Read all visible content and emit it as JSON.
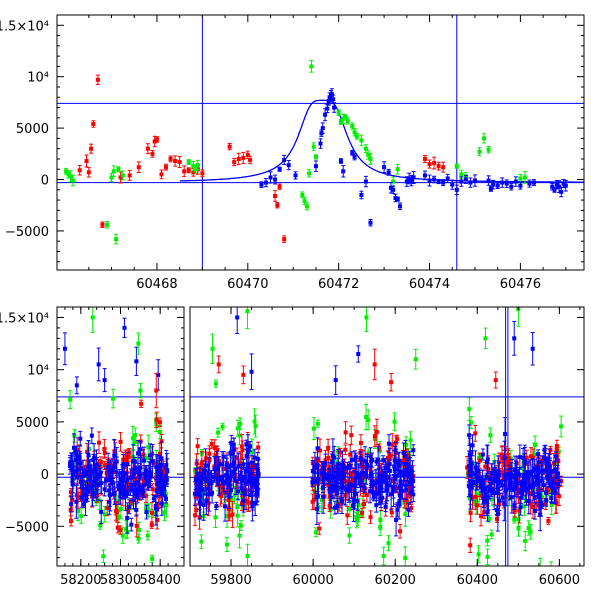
{
  "colors": {
    "red": "#ff0000",
    "green": "#00ee00",
    "blue": "#0000ff",
    "axis": "#000000",
    "ref_line": "#0000ff",
    "model_curve": "#0000ff"
  },
  "chart_data": [
    {
      "type": "scatter",
      "panel": "top",
      "title": "",
      "xlabel": "",
      "ylabel": "",
      "xlim": [
        60465.8,
        60477.4
      ],
      "ylim": [
        -8800,
        16000
      ],
      "x_ticks": [
        60468,
        60470,
        60472,
        60474,
        60476
      ],
      "x_tick_labels": [
        "60468",
        "60470",
        "60472",
        "60474",
        "60476"
      ],
      "y_ticks": [
        -5000,
        0,
        5000,
        10000,
        15000
      ],
      "y_tick_labels": [
        "−5000",
        "0",
        "5000",
        "10⁴",
        "1.5×10⁴"
      ],
      "horizontal_lines": [
        7400,
        -300
      ],
      "vertical_lines": [
        60469.0,
        60474.6
      ],
      "model_curve": {
        "baseline": -300,
        "peak": 7700,
        "t0": 60471.65,
        "width": 0.45,
        "x_range": [
          60468.5,
          60477.4
        ]
      },
      "series": [
        {
          "color": "red",
          "points": [
            [
              60466.7,
              9700
            ],
            [
              60466.6,
              5400
            ],
            [
              60466.55,
              3000
            ],
            [
              60466.45,
              1800
            ],
            [
              60466.3,
              900
            ],
            [
              60466.5,
              700
            ],
            [
              60466.8,
              -4400
            ],
            [
              60467.2,
              200
            ],
            [
              60467.4,
              400
            ],
            [
              60467.6,
              1200
            ],
            [
              60467.8,
              3000
            ],
            [
              60467.9,
              2500
            ],
            [
              60467.95,
              3700
            ],
            [
              60468.0,
              3900
            ],
            [
              60468.1,
              500
            ],
            [
              60468.2,
              1200
            ],
            [
              60468.3,
              2000
            ],
            [
              60468.4,
              1800
            ],
            [
              60468.5,
              1700
            ],
            [
              60468.6,
              800
            ],
            [
              60468.7,
              900
            ],
            [
              60468.8,
              700
            ],
            [
              60468.9,
              1000
            ],
            [
              60469.0,
              600
            ],
            [
              60469.6,
              3200
            ],
            [
              60469.7,
              1700
            ],
            [
              60469.8,
              2000
            ],
            [
              60469.9,
              2100
            ],
            [
              60470.0,
              2400
            ],
            [
              60470.05,
              1900
            ],
            [
              60470.6,
              -1600
            ],
            [
              60470.65,
              -2500
            ],
            [
              60470.7,
              -700
            ],
            [
              60470.8,
              -5800
            ],
            [
              60473.9,
              2000
            ],
            [
              60474.0,
              1500
            ],
            [
              60474.1,
              1600
            ],
            [
              60474.2,
              1300
            ],
            [
              60474.3,
              1200
            ]
          ]
        },
        {
          "color": "green",
          "points": [
            [
              60466.0,
              800
            ],
            [
              60466.05,
              500
            ],
            [
              60466.1,
              300
            ],
            [
              60466.15,
              -100
            ],
            [
              60466.9,
              -4400
            ],
            [
              60467.0,
              200
            ],
            [
              60467.05,
              800
            ],
            [
              60467.1,
              -5800
            ],
            [
              60467.15,
              1000
            ],
            [
              60467.25,
              400
            ],
            [
              60468.7,
              1700
            ],
            [
              60468.8,
              1300
            ],
            [
              60468.85,
              1000
            ],
            [
              60468.9,
              1400
            ],
            [
              60471.2,
              -1500
            ],
            [
              60471.25,
              -2100
            ],
            [
              60471.3,
              -2600
            ],
            [
              60471.35,
              600
            ],
            [
              60471.4,
              11000
            ],
            [
              60471.45,
              3200
            ],
            [
              60471.5,
              2200
            ],
            [
              60472.0,
              6500
            ],
            [
              60472.05,
              5600
            ],
            [
              60472.1,
              5900
            ],
            [
              60472.15,
              6100
            ],
            [
              60472.2,
              5700
            ],
            [
              60472.3,
              5200
            ],
            [
              60472.35,
              4600
            ],
            [
              60472.4,
              4200
            ],
            [
              60472.5,
              3800
            ],
            [
              60472.6,
              3000
            ],
            [
              60472.65,
              2400
            ],
            [
              60472.7,
              2000
            ],
            [
              60473.2,
              -200
            ],
            [
              60473.3,
              1000
            ],
            [
              60474.6,
              1300
            ],
            [
              60474.7,
              500
            ],
            [
              60474.8,
              300
            ],
            [
              60475.1,
              2700
            ],
            [
              60475.2,
              4000
            ],
            [
              60475.3,
              2900
            ],
            [
              60476.0,
              100
            ],
            [
              60476.1,
              200
            ]
          ]
        },
        {
          "color": "blue",
          "points": [
            [
              60470.3,
              -500
            ],
            [
              60470.4,
              -300
            ],
            [
              60470.5,
              200
            ],
            [
              60470.6,
              0
            ],
            [
              60470.7,
              1000
            ],
            [
              60470.8,
              1900
            ],
            [
              60470.9,
              1400
            ],
            [
              60471.05,
              400
            ],
            [
              60471.5,
              1300
            ],
            [
              60471.6,
              3500
            ],
            [
              60471.62,
              4500
            ],
            [
              60471.65,
              5000
            ],
            [
              60471.7,
              6300
            ],
            [
              60471.75,
              6900
            ],
            [
              60471.78,
              7500
            ],
            [
              60471.8,
              8000
            ],
            [
              60471.83,
              8200
            ],
            [
              60471.85,
              8300
            ],
            [
              60471.88,
              7800
            ],
            [
              60471.9,
              7000
            ],
            [
              60472.05,
              1800
            ],
            [
              60472.1,
              800
            ],
            [
              60472.3,
              2600
            ],
            [
              60472.35,
              2200
            ],
            [
              60472.5,
              -1500
            ],
            [
              60472.6,
              -200
            ],
            [
              60472.7,
              -4200
            ],
            [
              60473.0,
              1200
            ],
            [
              60473.1,
              700
            ],
            [
              60473.15,
              -800
            ],
            [
              60473.2,
              -1000
            ],
            [
              60473.25,
              -1800
            ],
            [
              60473.3,
              -1900
            ],
            [
              60473.35,
              -2600
            ],
            [
              60473.5,
              -200
            ],
            [
              60473.55,
              100
            ],
            [
              60473.6,
              -100
            ],
            [
              60473.65,
              200
            ],
            [
              60473.9,
              400
            ],
            [
              60474.0,
              -100
            ],
            [
              60474.1,
              0
            ],
            [
              60474.2,
              -200
            ],
            [
              60474.3,
              -300
            ],
            [
              60474.4,
              100
            ],
            [
              60474.5,
              -500
            ],
            [
              60474.6,
              -1000
            ],
            [
              60474.7,
              -200
            ],
            [
              60474.8,
              0
            ],
            [
              60474.9,
              -300
            ],
            [
              60475.0,
              -100
            ],
            [
              60475.3,
              -100
            ],
            [
              60475.35,
              -900
            ],
            [
              60475.4,
              -500
            ],
            [
              60475.5,
              -600
            ],
            [
              60475.6,
              -300
            ],
            [
              60475.7,
              -400
            ],
            [
              60475.8,
              -700
            ],
            [
              60475.9,
              -200
            ],
            [
              60476.0,
              -600
            ],
            [
              60476.2,
              -400
            ],
            [
              60476.3,
              -300
            ],
            [
              60476.7,
              -700
            ],
            [
              60476.75,
              -1000
            ],
            [
              60476.8,
              -500
            ],
            [
              60476.85,
              -700
            ],
            [
              60476.9,
              -1200
            ],
            [
              60476.95,
              -400
            ],
            [
              60477.0,
              -600
            ]
          ]
        }
      ]
    },
    {
      "type": "scatter",
      "panel": "bottom",
      "title": "",
      "xlabel": "",
      "ylabel": "",
      "segments": [
        {
          "xlim": [
            58140,
            58460
          ]
        },
        {
          "xlim": [
            59700,
            60660
          ]
        }
      ],
      "ylim": [
        -8800,
        16000
      ],
      "x_ticks": [
        58200,
        58300,
        58400,
        59800,
        60000,
        60200,
        60400,
        60600
      ],
      "x_tick_labels": [
        "58200",
        "58300",
        "58400",
        "59800",
        "60000",
        "60200",
        "60400",
        "60600"
      ],
      "y_ticks": [
        -5000,
        0,
        5000,
        10000,
        15000
      ],
      "y_tick_labels": [
        "−5000",
        "0",
        "5000",
        "10⁴",
        "1.5×10⁴"
      ],
      "horizontal_lines": [
        7400,
        -300
      ],
      "vertical_lines": [
        60469.0,
        60474.6
      ],
      "seasons": [
        {
          "x_start": 58172,
          "x_end": 58418
        },
        {
          "x_start": 59712,
          "x_end": 59868
        },
        {
          "x_start": 59998,
          "x_end": 60245
        },
        {
          "x_start": 60375,
          "x_end": 60605
        }
      ],
      "outliers": [
        {
          "color": "blue",
          "points": [
            [
              58310,
              14000
            ],
            [
              58340,
              10800
            ],
            [
              58245,
              10500
            ],
            [
              58160,
              12000
            ],
            [
              58260,
              9000
            ],
            [
              58395,
              9500
            ],
            [
              60110,
              11500
            ],
            [
              60055,
              9000
            ],
            [
              60490,
              13000
            ],
            [
              60535,
              12000
            ],
            [
              59850,
              9800
            ],
            [
              59815,
              15000
            ],
            [
              58190,
              8500
            ]
          ]
        },
        {
          "color": "green",
          "points": [
            [
              58345,
              12500
            ],
            [
              58230,
              15000
            ],
            [
              60500,
              15800
            ],
            [
              59840,
              15600
            ],
            [
              60130,
              15000
            ],
            [
              60420,
              13000
            ],
            [
              59755,
              12000
            ],
            [
              60250,
              11000
            ]
          ]
        },
        {
          "color": "red",
          "points": [
            [
              58390,
              8000
            ],
            [
              59770,
              10500
            ],
            [
              60150,
              10500
            ],
            [
              60445,
              9000
            ],
            [
              60190,
              8800
            ],
            [
              59830,
              9500
            ]
          ]
        }
      ]
    }
  ]
}
